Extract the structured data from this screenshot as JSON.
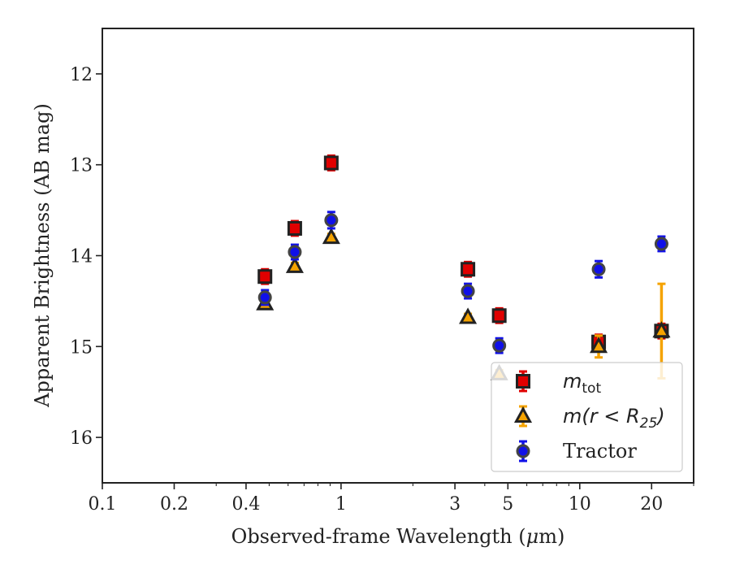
{
  "chart_data": {
    "type": "scatter",
    "xlabel_text": "Observed-frame Wavelength (",
    "xlabel_unit_mu": "μ",
    "xlabel_unit_rest": "m)",
    "ylabel": "Apparent Brightness (AB mag)",
    "xscale": "log",
    "xlim": [
      0.1,
      30
    ],
    "ylim": [
      16.5,
      11.5
    ],
    "y_inverted": true,
    "xticks": [
      {
        "value": 0.1,
        "label": "0.1"
      },
      {
        "value": 0.2,
        "label": "0.2"
      },
      {
        "value": 0.4,
        "label": "0.4"
      },
      {
        "value": 1,
        "label": "1"
      },
      {
        "value": 3,
        "label": "3"
      },
      {
        "value": 5,
        "label": "5"
      },
      {
        "value": 10,
        "label": "10"
      },
      {
        "value": 20,
        "label": "20"
      }
    ],
    "yticks": [
      {
        "value": 12,
        "label": "12"
      },
      {
        "value": 13,
        "label": "13"
      },
      {
        "value": 14,
        "label": "14"
      },
      {
        "value": 15,
        "label": "15"
      },
      {
        "value": 16,
        "label": "16"
      }
    ],
    "legend_position": "lower-right",
    "series": [
      {
        "name": "m_tot",
        "legend": {
          "main": "m",
          "sub": "tot",
          "sub_style": "roman"
        },
        "marker": "square",
        "color": "#e00000",
        "edge": "#222222",
        "ecolor": "#e00000",
        "points": [
          {
            "x": 0.48,
            "y": 14.23,
            "err": 0.08
          },
          {
            "x": 0.64,
            "y": 13.7,
            "err": 0.08
          },
          {
            "x": 0.91,
            "y": 12.98,
            "err": 0.08
          },
          {
            "x": 3.4,
            "y": 14.15,
            "err": 0.08
          },
          {
            "x": 4.6,
            "y": 14.66,
            "err": 0.08
          },
          {
            "x": 12.0,
            "y": 14.95,
            "err": 0.08
          },
          {
            "x": 22.0,
            "y": 14.83,
            "err": 0.08
          }
        ]
      },
      {
        "name": "m(r < R_25)",
        "legend": {
          "main": "m(r < R",
          "sub": "25",
          "close": ")",
          "sub_style": "italic"
        },
        "marker": "triangle",
        "color": "#f5a300",
        "edge": "#222222",
        "ecolor": "#f5a300",
        "points": [
          {
            "x": 0.48,
            "y": 14.53,
            "err": 0.04
          },
          {
            "x": 0.64,
            "y": 14.12,
            "err": 0.04
          },
          {
            "x": 0.91,
            "y": 13.8,
            "err": 0.04
          },
          {
            "x": 3.4,
            "y": 14.68,
            "err": 0.04
          },
          {
            "x": 4.6,
            "y": 15.3,
            "err": 0.04
          },
          {
            "x": 12.0,
            "y": 15.0,
            "err": 0.12
          },
          {
            "x": 22.0,
            "y": 14.83,
            "err": 0.52
          }
        ]
      },
      {
        "name": "Tractor",
        "legend": {
          "main": "Tractor",
          "sub_style": "text"
        },
        "marker": "circle",
        "color": "#1010e8",
        "edge": "#444444",
        "ecolor": "#1010e8",
        "points": [
          {
            "x": 0.48,
            "y": 14.46,
            "err": 0.08
          },
          {
            "x": 0.64,
            "y": 13.96,
            "err": 0.08
          },
          {
            "x": 0.91,
            "y": 13.61,
            "err": 0.09
          },
          {
            "x": 3.4,
            "y": 14.39,
            "err": 0.08
          },
          {
            "x": 4.6,
            "y": 14.99,
            "err": 0.08
          },
          {
            "x": 12.0,
            "y": 14.15,
            "err": 0.09
          },
          {
            "x": 22.0,
            "y": 13.87,
            "err": 0.08
          }
        ]
      }
    ]
  }
}
